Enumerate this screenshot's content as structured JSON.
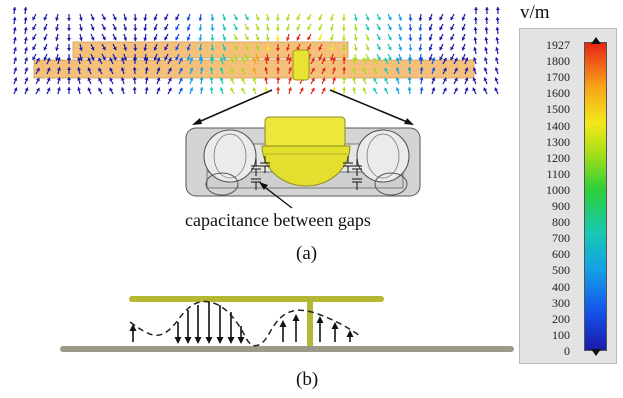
{
  "unit_label": "v/m",
  "colorbar": {
    "ticks": [
      "1927",
      "1800",
      "1700",
      "1600",
      "1500",
      "1400",
      "1300",
      "1200",
      "1100",
      "1000",
      "900",
      "800",
      "700",
      "600",
      "500",
      "400",
      "300",
      "200",
      "100",
      "0"
    ],
    "colors": [
      "#e62414",
      "#f7a21a",
      "#f3e81a",
      "#a8de18",
      "#2ccf3a",
      "#18c8b4",
      "#14a0e6",
      "#1450e8",
      "#1a1aa8"
    ]
  },
  "annotation": "capacitance between gaps",
  "captions": {
    "a": "(a)",
    "b": "(b)"
  },
  "colors": {
    "strip": "#f5c07a",
    "probe": "#e8e233",
    "plate": "#b5b832",
    "ground": "#9c9a8a",
    "housing": "#d4d4d4"
  }
}
